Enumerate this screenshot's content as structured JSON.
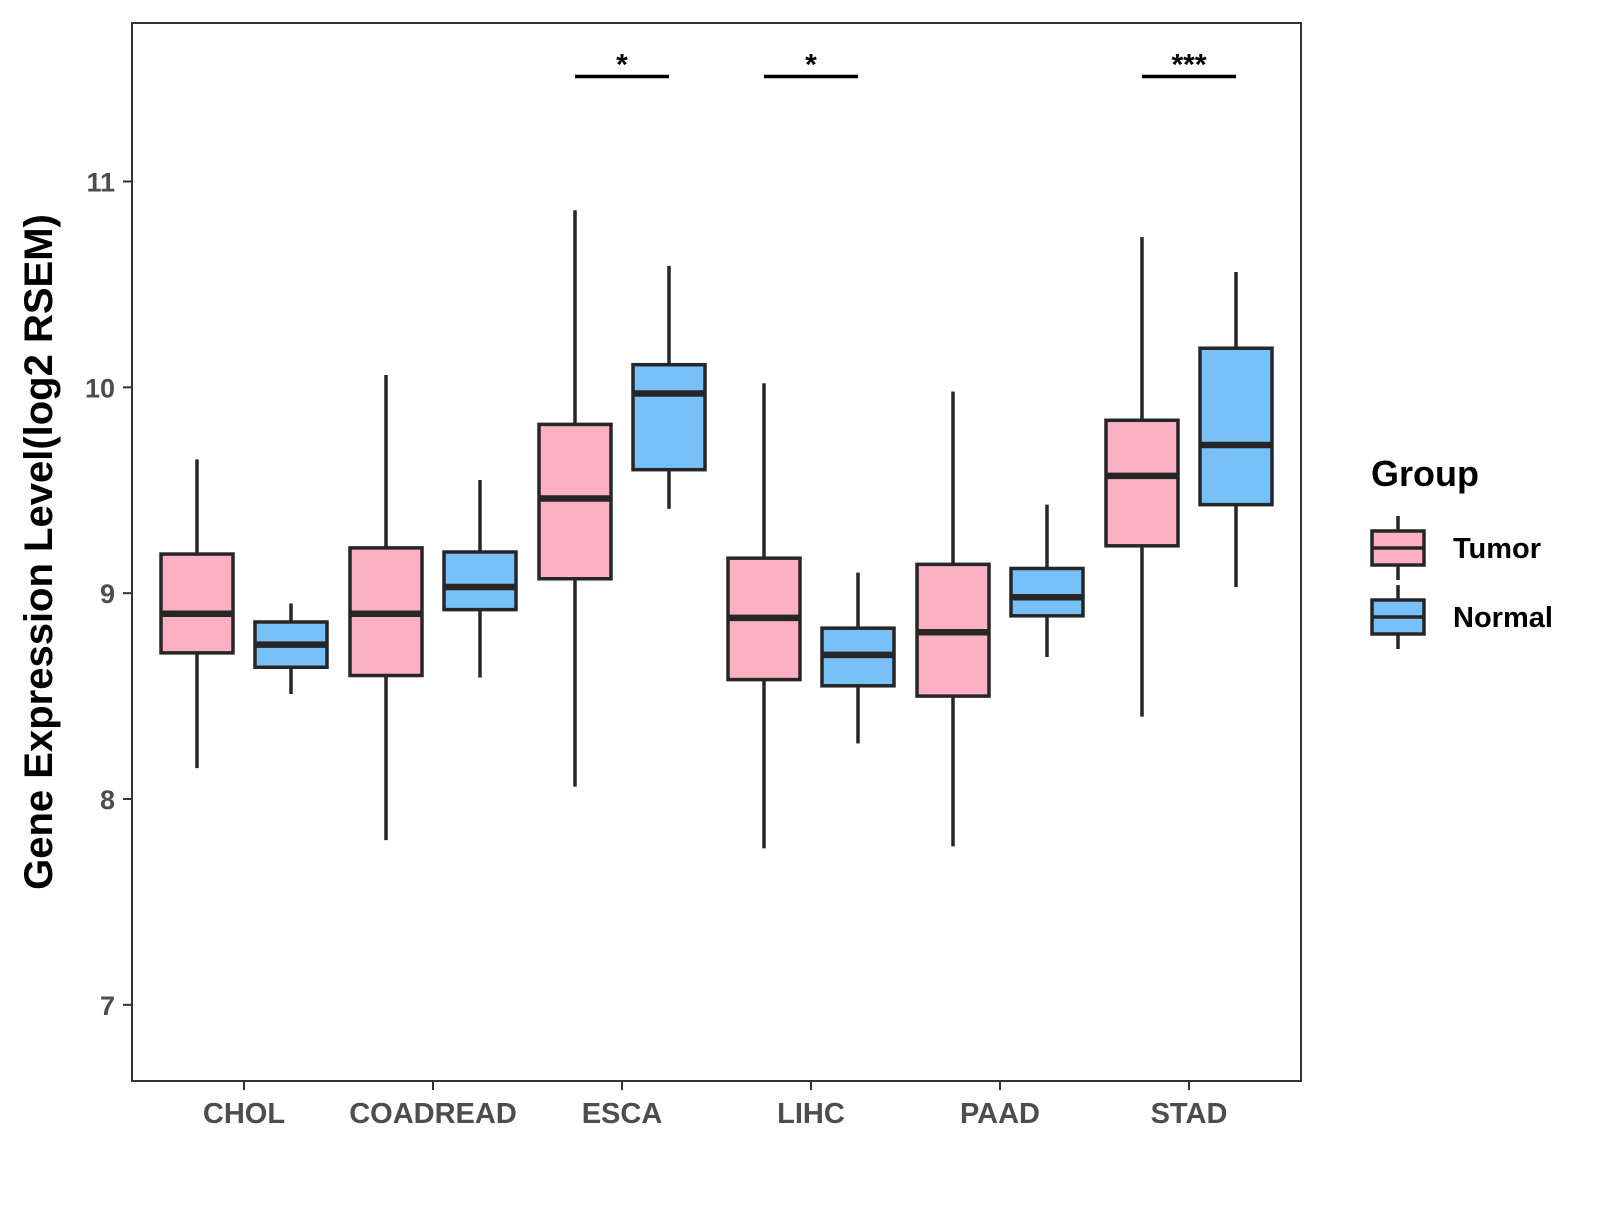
{
  "chart_data": {
    "type": "boxplot",
    "title": "",
    "xlabel": "",
    "ylabel": "Gene Expression Level(log2 RSEM)",
    "ylim": [
      6.63,
      11.77
    ],
    "yticks": [
      7,
      8,
      9,
      10,
      11
    ],
    "categories": [
      "CHOL",
      "COADREAD",
      "ESCA",
      "LIHC",
      "PAAD",
      "STAD"
    ],
    "legend": {
      "title": "Group",
      "position": "right",
      "entries": [
        {
          "name": "Tumor",
          "color": "#FBB0C3"
        },
        {
          "name": "Normal",
          "color": "#77C0F8"
        }
      ]
    },
    "series": [
      {
        "name": "Tumor",
        "color": "#FBB0C3",
        "boxes": [
          {
            "category": "CHOL",
            "min": 8.15,
            "q1": 8.71,
            "median": 8.9,
            "q3": 9.19,
            "max": 9.65
          },
          {
            "category": "COADREAD",
            "min": 7.8,
            "q1": 8.6,
            "median": 8.9,
            "q3": 9.22,
            "max": 10.06
          },
          {
            "category": "ESCA",
            "min": 8.06,
            "q1": 9.07,
            "median": 9.46,
            "q3": 9.82,
            "max": 10.86
          },
          {
            "category": "LIHC",
            "min": 7.76,
            "q1": 8.58,
            "median": 8.88,
            "q3": 9.17,
            "max": 10.02
          },
          {
            "category": "PAAD",
            "min": 7.77,
            "q1": 8.5,
            "median": 8.81,
            "q3": 9.14,
            "max": 9.98
          },
          {
            "category": "STAD",
            "min": 8.4,
            "q1": 9.23,
            "median": 9.57,
            "q3": 9.84,
            "max": 10.73
          }
        ]
      },
      {
        "name": "Normal",
        "color": "#77C0F8",
        "boxes": [
          {
            "category": "CHOL",
            "min": 8.51,
            "q1": 8.64,
            "median": 8.75,
            "q3": 8.86,
            "max": 8.95
          },
          {
            "category": "COADREAD",
            "min": 8.59,
            "q1": 8.92,
            "median": 9.03,
            "q3": 9.2,
            "max": 9.55
          },
          {
            "category": "ESCA",
            "min": 9.41,
            "q1": 9.6,
            "median": 9.97,
            "q3": 10.11,
            "max": 10.59
          },
          {
            "category": "LIHC",
            "min": 8.27,
            "q1": 8.55,
            "median": 8.7,
            "q3": 8.83,
            "max": 9.1
          },
          {
            "category": "PAAD",
            "min": 8.69,
            "q1": 8.89,
            "median": 8.98,
            "q3": 9.12,
            "max": 9.43
          },
          {
            "category": "STAD",
            "min": 9.03,
            "q1": 9.43,
            "median": 9.72,
            "q3": 10.19,
            "max": 10.56
          }
        ]
      }
    ],
    "annotations": [
      {
        "category": "ESCA",
        "label": "*",
        "y": 11.51
      },
      {
        "category": "LIHC",
        "label": "*",
        "y": 11.51
      },
      {
        "category": "STAD",
        "label": "***",
        "y": 11.51
      }
    ],
    "grid": false
  }
}
